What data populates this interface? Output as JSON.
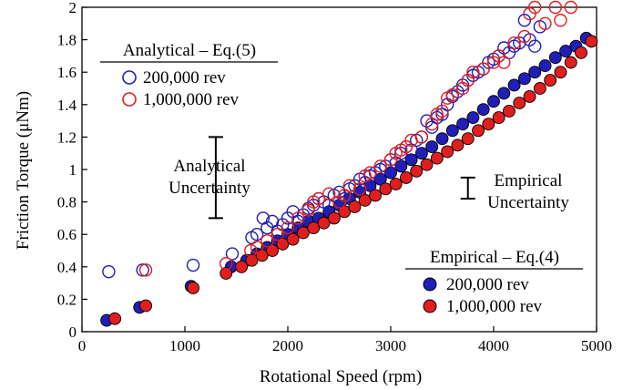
{
  "chart_data": {
    "type": "scatter",
    "xlabel": "Rotational Speed (rpm)",
    "ylabel": "Friction Torque (μNm)",
    "xlim": [
      0,
      5000
    ],
    "ylim": [
      0,
      2
    ],
    "xticks": [
      "0",
      "1000",
      "2000",
      "3000",
      "4000",
      "5000"
    ],
    "yticks": [
      "0",
      "0.2",
      "0.4",
      "0.6",
      "0.8",
      "1",
      "1.2",
      "1.4",
      "1.6",
      "1.8",
      "2"
    ],
    "grid": false,
    "colors": {
      "blue": "#1f1fb8",
      "red": "#e01e1e",
      "axis": "#000000"
    },
    "legends": [
      {
        "title": "Analytical – Eq.(5)",
        "position": "top-left",
        "marker": "open-circle",
        "entries": [
          {
            "label": "200,000 rev",
            "color": "#1f1fb8"
          },
          {
            "label": "1,000,000 rev",
            "color": "#e01e1e"
          }
        ]
      },
      {
        "title": "Empirical – Eq.(4)",
        "position": "bottom-right",
        "marker": "filled-circle",
        "entries": [
          {
            "label": "200,000 rev",
            "color": "#1f1fb8"
          },
          {
            "label": "1,000,000 rev",
            "color": "#e01e1e"
          }
        ]
      }
    ],
    "annotations": [
      {
        "lines": [
          "Analytical",
          "Uncertainty"
        ],
        "bar_x": 1300,
        "bar_y": [
          0.7,
          1.2
        ]
      },
      {
        "lines": [
          "Empirical",
          "Uncertainty"
        ],
        "bar_x": 3750,
        "bar_y": [
          0.82,
          0.95
        ]
      }
    ],
    "series": [
      {
        "name": "Analytical – Eq.(5) 200,000 rev",
        "marker": "open",
        "color": "#1f1fb8",
        "x": [
          260,
          590,
          1080,
          1460,
          1650,
          1700,
          1760,
          1800,
          1850,
          1900,
          1950,
          2000,
          2050,
          2100,
          2150,
          2200,
          2250,
          2300,
          2350,
          2400,
          2450,
          2500,
          2550,
          2600,
          2650,
          2700,
          2750,
          2800,
          2850,
          2900,
          2950,
          3000,
          3050,
          3100,
          3150,
          3200,
          3250,
          3300,
          3350,
          3400,
          3450,
          3500,
          3550,
          3600,
          3650,
          3700,
          3750,
          3800,
          3850,
          3900,
          3950,
          4000,
          4050,
          4100,
          4150,
          4200,
          4250,
          4300,
          4350,
          4400,
          4450
        ],
        "y": [
          0.37,
          0.38,
          0.41,
          0.48,
          0.58,
          0.6,
          0.7,
          0.64,
          0.68,
          0.62,
          0.66,
          0.7,
          0.74,
          0.68,
          0.72,
          0.76,
          0.78,
          0.82,
          0.8,
          0.78,
          0.84,
          0.86,
          0.82,
          0.88,
          0.9,
          0.94,
          0.92,
          0.96,
          0.98,
          1.0,
          1.02,
          1.06,
          1.04,
          1.1,
          1.14,
          1.12,
          1.18,
          1.2,
          1.3,
          1.26,
          1.32,
          1.34,
          1.4,
          1.45,
          1.48,
          1.52,
          1.55,
          1.58,
          1.6,
          1.62,
          1.66,
          1.68,
          1.7,
          1.75,
          1.72,
          1.76,
          1.78,
          1.92,
          1.8,
          1.76,
          1.88
        ]
      },
      {
        "name": "Analytical – Eq.(5) 1,000,000 rev",
        "marker": "open",
        "color": "#e01e1e",
        "x": [
          620,
          1400,
          1640,
          1700,
          1800,
          1900,
          2000,
          2100,
          2200,
          2250,
          2300,
          2400,
          2500,
          2550,
          2600,
          2700,
          2750,
          2800,
          2900,
          3000,
          3050,
          3100,
          3150,
          3200,
          3300,
          3400,
          3450,
          3500,
          3550,
          3600,
          3700,
          3750,
          3800,
          3900,
          4000,
          4050,
          4100,
          4200,
          4300,
          4350,
          4400,
          4500,
          4600,
          4650,
          4750
        ],
        "y": [
          0.38,
          0.42,
          0.5,
          0.52,
          0.56,
          0.6,
          0.64,
          0.7,
          0.75,
          0.8,
          0.82,
          0.85,
          0.8,
          0.84,
          0.9,
          0.88,
          0.96,
          0.98,
          1.02,
          1.06,
          1.1,
          1.12,
          1.14,
          1.18,
          1.2,
          1.28,
          1.34,
          1.36,
          1.44,
          1.46,
          1.5,
          1.55,
          1.6,
          1.62,
          1.66,
          1.7,
          1.66,
          1.78,
          1.82,
          1.96,
          2.0,
          1.9,
          2.0,
          1.92,
          2.0
        ]
      },
      {
        "name": "Empirical – Eq.(4) 200,000 rev",
        "marker": "filled",
        "color": "#1f1fb8",
        "x": [
          240,
          560,
          1060,
          1450,
          1600,
          1700,
          1800,
          1900,
          2000,
          2100,
          2200,
          2300,
          2400,
          2500,
          2600,
          2700,
          2800,
          2900,
          3000,
          3100,
          3200,
          3300,
          3400,
          3500,
          3600,
          3700,
          3800,
          3900,
          4000,
          4100,
          4200,
          4300,
          4400,
          4500,
          4600,
          4700,
          4800,
          4900
        ],
        "y": [
          0.07,
          0.15,
          0.28,
          0.4,
          0.44,
          0.48,
          0.52,
          0.56,
          0.6,
          0.64,
          0.68,
          0.7,
          0.74,
          0.78,
          0.82,
          0.86,
          0.9,
          0.94,
          0.98,
          1.02,
          1.06,
          1.1,
          1.14,
          1.19,
          1.24,
          1.28,
          1.32,
          1.37,
          1.42,
          1.47,
          1.52,
          1.56,
          1.6,
          1.64,
          1.69,
          1.73,
          1.76,
          1.81
        ]
      },
      {
        "name": "Empirical – Eq.(4) 1,000,000 rev",
        "marker": "filled",
        "color": "#e01e1e",
        "x": [
          320,
          620,
          1080,
          1400,
          1550,
          1650,
          1750,
          1850,
          1950,
          2050,
          2150,
          2250,
          2350,
          2450,
          2550,
          2650,
          2750,
          2850,
          2950,
          3050,
          3150,
          3250,
          3350,
          3450,
          3550,
          3650,
          3750,
          3850,
          3950,
          4050,
          4150,
          4250,
          4350,
          4450,
          4550,
          4650,
          4750,
          4850,
          4950
        ],
        "y": [
          0.08,
          0.16,
          0.27,
          0.36,
          0.4,
          0.44,
          0.47,
          0.5,
          0.54,
          0.57,
          0.61,
          0.64,
          0.67,
          0.7,
          0.74,
          0.77,
          0.81,
          0.84,
          0.88,
          0.91,
          0.95,
          0.99,
          1.03,
          1.07,
          1.11,
          1.15,
          1.19,
          1.24,
          1.28,
          1.32,
          1.36,
          1.41,
          1.45,
          1.5,
          1.55,
          1.6,
          1.66,
          1.72,
          1.79
        ]
      }
    ]
  }
}
